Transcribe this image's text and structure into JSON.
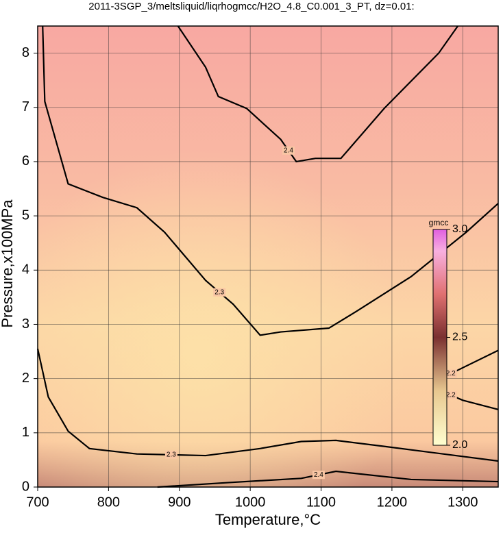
{
  "chart_data": {
    "type": "contour",
    "title": "2011-3SGP_3/meltsliquid/liqrhogmcc/H2O_4.8_C0.001_3_PT, dz=0.01:",
    "x_label": "Temperature,°C",
    "y_label": "Pressure,x100MPa",
    "xlim": [
      700,
      1350
    ],
    "ylim": [
      0,
      8.5
    ],
    "xticks": [
      700,
      800,
      900,
      1000,
      1100,
      1200,
      1300
    ],
    "yticks": [
      0,
      1,
      2,
      3,
      4,
      5,
      6,
      7,
      8
    ],
    "grid": true,
    "contour_color": "#000000",
    "contours": [
      {
        "level": 2.4,
        "x": [
          898,
          937,
          955,
          995,
          1043,
          1065,
          1092,
          1128,
          1189,
          1266,
          1293
        ],
        "y": [
          8.5,
          7.74,
          7.2,
          6.98,
          6.41,
          6.0,
          6.06,
          6.06,
          6.98,
          8.0,
          8.5
        ]
      },
      {
        "level": 2.3,
        "x": [
          707,
          710,
          743,
          792,
          840,
          879,
          937,
          976,
          1014,
          1043,
          1111,
          1150,
          1227,
          1305,
          1350
        ],
        "y": [
          8.5,
          7.11,
          5.59,
          5.34,
          5.15,
          4.7,
          3.81,
          3.37,
          2.8,
          2.86,
          2.93,
          3.24,
          3.88,
          4.7,
          5.23
        ]
      },
      {
        "level": 2.3,
        "x": [
          700,
          715,
          743,
          773,
          840,
          937,
          1014,
          1072,
          1121,
          1189,
          1350
        ],
        "y": [
          2.55,
          1.66,
          1.03,
          0.71,
          0.61,
          0.58,
          0.71,
          0.84,
          0.86,
          0.75,
          0.48
        ]
      },
      {
        "level": 2.4,
        "x": [
          869,
          966,
          1072,
          1121,
          1227,
          1350
        ],
        "y": [
          0,
          0.08,
          0.16,
          0.29,
          0.14,
          0.1
        ]
      },
      {
        "level": 2.2,
        "x": [
          1266,
          1300,
          1350
        ],
        "y": [
          1.98,
          2.2,
          2.52
        ]
      },
      {
        "level": 2.2,
        "x": [
          1266,
          1300,
          1350
        ],
        "y": [
          1.79,
          1.6,
          1.43
        ]
      }
    ],
    "colorbar": {
      "label": "gmcc",
      "clim": [
        2.0,
        3.0
      ],
      "ticks": [
        {
          "value": 2,
          "label": "2.0"
        },
        {
          "value": 2.5,
          "label": "2.5"
        },
        {
          "value": 3,
          "label": "3.0"
        }
      ]
    }
  }
}
